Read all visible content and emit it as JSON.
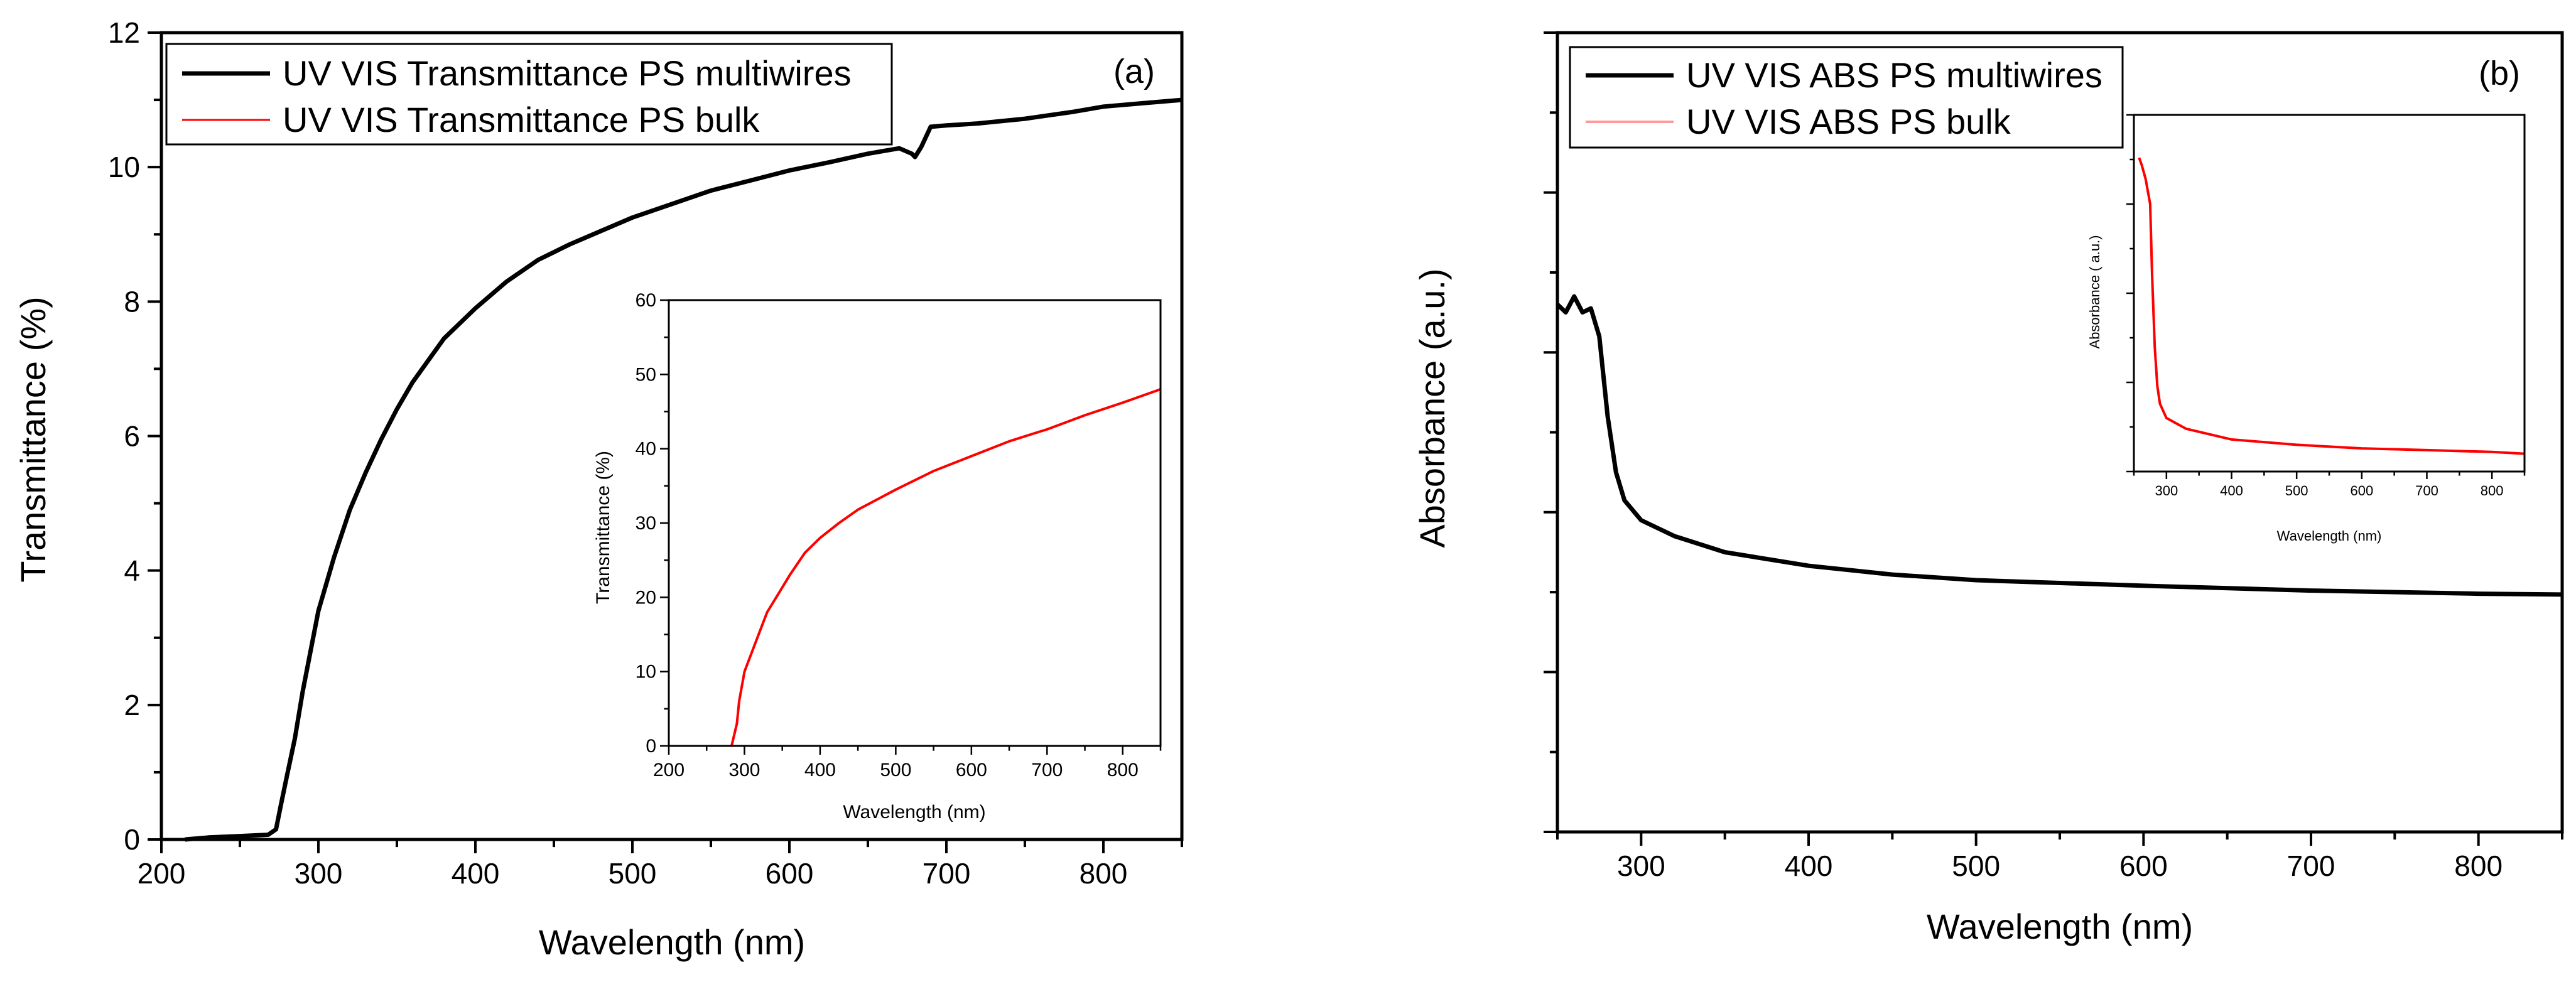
{
  "chart_data": [
    {
      "id": "panel_a",
      "type": "line",
      "panel_label": "(a)",
      "xlabel": "Wavelength (nm)",
      "ylabel": "Transmittance (%)",
      "xlim": [
        200,
        850
      ],
      "ylim": [
        0,
        12
      ],
      "xticks": [
        200,
        300,
        400,
        500,
        600,
        700,
        800
      ],
      "yticks": [
        0,
        2,
        4,
        6,
        8,
        10,
        12
      ],
      "legend_position": "top-left",
      "series": [
        {
          "name": "UV VIS Transmittance PS multiwires",
          "color": "#000000",
          "x": [
            215,
            230,
            250,
            268,
            273,
            276,
            280,
            285,
            290,
            300,
            310,
            320,
            330,
            340,
            350,
            360,
            380,
            400,
            420,
            440,
            460,
            480,
            500,
            525,
            550,
            575,
            600,
            625,
            650,
            670,
            678,
            680,
            684,
            690,
            700,
            720,
            750,
            780,
            800,
            825,
            850
          ],
          "y": [
            0.0,
            0.03,
            0.05,
            0.07,
            0.15,
            0.5,
            0.95,
            1.5,
            2.2,
            3.4,
            4.2,
            4.9,
            5.45,
            5.95,
            6.4,
            6.8,
            7.45,
            7.9,
            8.3,
            8.62,
            8.85,
            9.05,
            9.25,
            9.45,
            9.65,
            9.8,
            9.95,
            10.07,
            10.2,
            10.28,
            10.2,
            10.15,
            10.3,
            10.6,
            10.62,
            10.65,
            10.72,
            10.82,
            10.9,
            10.95,
            11.0
          ]
        },
        {
          "name": "UV VIS Transmittance PS bulk",
          "color": "#ff0000",
          "x": [],
          "y": []
        }
      ],
      "inset": {
        "xlabel": "Wavelength (nm)",
        "ylabel": "Transmittance (%)",
        "xlim": [
          200,
          850
        ],
        "ylim": [
          0,
          60
        ],
        "xticks": [
          200,
          300,
          400,
          500,
          600,
          700,
          800
        ],
        "yticks": [
          0,
          10,
          20,
          30,
          40,
          50,
          60
        ],
        "series": [
          {
            "name": "UV VIS Transmittance PS bulk",
            "color": "#ff0000",
            "x": [
              283,
              290,
              293,
              300,
              315,
              330,
              345,
              360,
              380,
              400,
              425,
              450,
              500,
              550,
              600,
              650,
              690,
              700,
              750,
              800,
              850
            ],
            "y": [
              0,
              3,
              6,
              10,
              14,
              18,
              20.5,
              23,
              26,
              28,
              30,
              31.8,
              34.5,
              37,
              39,
              41,
              42.3,
              42.6,
              44.5,
              46.2,
              48
            ]
          }
        ]
      }
    },
    {
      "id": "panel_b",
      "type": "line",
      "panel_label": "(b)",
      "xlabel": "Wavelength (nm)",
      "ylabel": "Absorbance (a.u.)",
      "xlim": [
        250,
        850
      ],
      "ylim": [
        0,
        10
      ],
      "xticks": [
        300,
        400,
        500,
        600,
        700,
        800
      ],
      "ytick_labels_shown": false,
      "legend_position": "top-left",
      "series": [
        {
          "name": "UV VIS ABS PS multiwires",
          "color": "#000000",
          "x": [
            250,
            255,
            260,
            265,
            270,
            275,
            280,
            285,
            290,
            300,
            320,
            350,
            400,
            450,
            500,
            600,
            700,
            800,
            850
          ],
          "y": [
            6.6,
            6.5,
            6.7,
            6.5,
            6.55,
            6.2,
            5.2,
            4.5,
            4.15,
            3.9,
            3.7,
            3.5,
            3.33,
            3.22,
            3.15,
            3.08,
            3.02,
            2.98,
            2.97
          ]
        },
        {
          "name": "UV VIS ABS PS bulk",
          "color": "#ff9999",
          "x": [],
          "y": []
        }
      ],
      "inset": {
        "xlabel": "Wavelength (nm)",
        "ylabel": "Absorbance ( a.u.)",
        "xlim": [
          250,
          850
        ],
        "ylim": [
          0,
          1
        ],
        "xticks": [
          300,
          400,
          500,
          600,
          700,
          800
        ],
        "ytick_labels_shown": false,
        "series": [
          {
            "name": "UV VIS ABS PS bulk",
            "color": "#ff0000",
            "x": [
              258,
              262,
              268,
              275,
              278,
              282,
              286,
              290,
              300,
              330,
              400,
              500,
              600,
              700,
              800,
              850
            ],
            "y": [
              0.88,
              0.86,
              0.82,
              0.75,
              0.55,
              0.35,
              0.24,
              0.19,
              0.15,
              0.12,
              0.09,
              0.075,
              0.065,
              0.06,
              0.055,
              0.05
            ]
          }
        ]
      }
    }
  ]
}
